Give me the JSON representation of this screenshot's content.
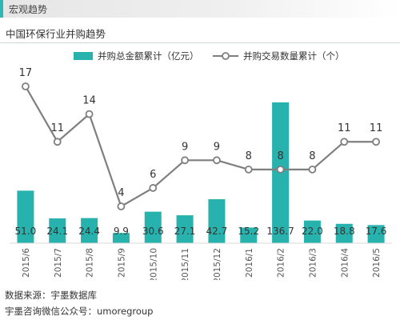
{
  "header": {
    "title": "宏观趋势"
  },
  "chart_title": "中国环保行业并购趋势",
  "chart_data": {
    "type": "bar+line",
    "categories": [
      "2015/6",
      "2015/7",
      "2015/8",
      "2015/9",
      "2015/10",
      "2015/11",
      "2015/12",
      "2016/1",
      "2016/2",
      "2016/3",
      "2016/4",
      "2016/5"
    ],
    "series": [
      {
        "name": "并购总金额累计（亿元）",
        "type": "bar",
        "color": "#27b2ad",
        "values": [
          51.0,
          24.1,
          24.4,
          9.9,
          30.6,
          27.1,
          42.7,
          15.2,
          136.7,
          22.0,
          18.8,
          17.6
        ],
        "labels": [
          "51.0",
          "24.1",
          "24.4",
          "9.9",
          "30.6",
          "27.1",
          "42.7",
          "15.2",
          "136.7",
          "22.0",
          "18.8",
          "17.6"
        ]
      },
      {
        "name": "并购交易数量累计（个）",
        "type": "line",
        "color": "#7f7f7f",
        "values": [
          17,
          11,
          14,
          4,
          6,
          9,
          9,
          8,
          8,
          8,
          11,
          11
        ]
      }
    ],
    "legend_position": "top",
    "grid": true
  },
  "footer": {
    "source": "数据来源：宇墨数据库",
    "wechat": "宇墨咨询微信公众号：umoregroup"
  }
}
